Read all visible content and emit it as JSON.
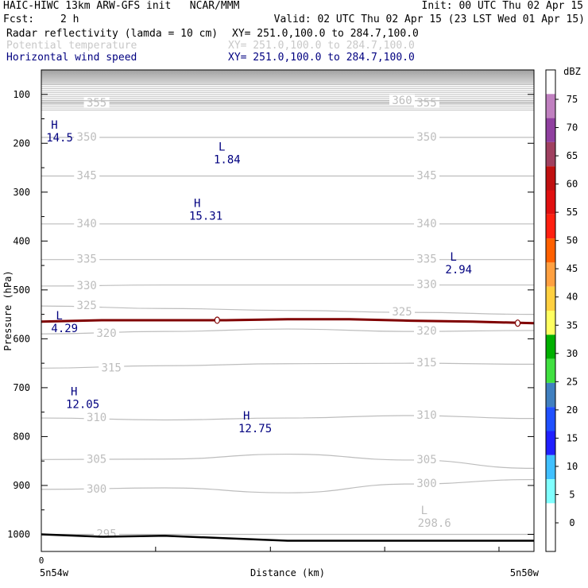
{
  "header": {
    "title_left": "HAIC-HIWC 13km ARW-GFS init   NCAR/MMM",
    "init": "Init: 00 UTC Thu 02 Apr 15",
    "fcst_label": "Fcst:",
    "fcst_value": "2 h",
    "valid": "Valid: 02 UTC Thu 02 Apr 15 (23 LST Wed 01 Apr 15)",
    "fields": [
      {
        "name": "Radar reflectivity (lamda = 10 cm)",
        "xy": "XY= 251.0,100.0 to 284.7,100.0",
        "color": "#000000"
      },
      {
        "name": "Potential temperature",
        "xy": "XY= 251.0,100.0 to 284.7,100.0",
        "color": "#c8c8c8"
      },
      {
        "name": "Horizontal wind speed",
        "xy": "XY= 251.0,100.0 to 284.7,100.0",
        "color": "#000080"
      }
    ]
  },
  "chart_data": {
    "type": "cross-section",
    "ylabel": "Pressure (hPa)",
    "xlabel": "Distance (km)",
    "yticks": [
      100,
      200,
      300,
      400,
      500,
      600,
      700,
      800,
      900,
      1000
    ],
    "ylim": [
      50,
      1035
    ],
    "x_start_label": "0",
    "x_left_label": "5n54w",
    "x_right_label": "5n50w",
    "theta_contours": [
      {
        "value": 295,
        "label": "295",
        "p": [
          1000,
          1000,
          1000,
          1000,
          1000
        ],
        "labels_at": [
          0.1
        ]
      },
      {
        "value": 298.6,
        "label": "298.6",
        "p": [],
        "labels_at": []
      },
      {
        "value": 300,
        "label": "300",
        "p": [
          908,
          905,
          915,
          897,
          888
        ],
        "labels_at": [
          0.08,
          0.75
        ]
      },
      {
        "value": 305,
        "label": "305",
        "p": [
          847,
          846,
          836,
          848,
          865
        ],
        "labels_at": [
          0.08,
          0.75
        ]
      },
      {
        "value": 310,
        "label": "310",
        "p": [
          762,
          766,
          762,
          757,
          763
        ],
        "labels_at": [
          0.08,
          0.75
        ]
      },
      {
        "value": 315,
        "label": "315",
        "p": [
          660,
          655,
          651,
          650,
          652
        ],
        "labels_at": [
          0.11,
          0.75
        ]
      },
      {
        "value": 320,
        "label": "320",
        "p": [
          590,
          585,
          580,
          585,
          583
        ],
        "labels_at": [
          0.1,
          0.75
        ]
      },
      {
        "value": 325,
        "label": "325",
        "p": [
          533,
          538,
          542,
          546,
          550
        ],
        "labels_at": [
          0.06,
          0.7
        ]
      },
      {
        "value": 330,
        "label": "330",
        "p": [
          492,
          490,
          490,
          490,
          490
        ],
        "labels_at": [
          0.06,
          0.75
        ]
      },
      {
        "value": 335,
        "label": "335",
        "p": [
          438,
          438,
          438,
          438,
          438
        ],
        "labels_at": [
          0.06,
          0.75
        ]
      },
      {
        "value": 340,
        "label": "340",
        "p": [
          365,
          365,
          365,
          365,
          365
        ],
        "labels_at": [
          0.06,
          0.75
        ]
      },
      {
        "value": 345,
        "label": "345",
        "p": [
          267,
          267,
          267,
          267,
          267
        ],
        "labels_at": [
          0.06,
          0.75
        ]
      },
      {
        "value": 350,
        "label": "350",
        "p": [
          188,
          188,
          188,
          188,
          188
        ],
        "labels_at": [
          0.06,
          0.75
        ]
      },
      {
        "value": 355,
        "label": "355",
        "p": [
          118,
          118,
          118,
          118,
          118
        ],
        "labels_at": [
          0.08,
          0.75
        ]
      },
      {
        "value": 360,
        "label": "360",
        "p": [
          113,
          113,
          113,
          113,
          113
        ],
        "labels_at": [
          0.7
        ]
      }
    ],
    "wind_extrema": [
      {
        "type": "H",
        "value": "14.5",
        "x_frac": 0.01,
        "p": 180
      },
      {
        "type": "L",
        "value": "1.84",
        "x_frac": 0.35,
        "p": 225
      },
      {
        "type": "H",
        "value": "15.31",
        "x_frac": 0.3,
        "p": 340
      },
      {
        "type": "L",
        "value": "2.94",
        "x_frac": 0.82,
        "p": 450
      },
      {
        "type": "L",
        "value": "4.29",
        "x_frac": 0.02,
        "p": 570
      },
      {
        "type": "H",
        "value": "12.05",
        "x_frac": 0.05,
        "p": 725
      },
      {
        "type": "H",
        "value": "12.75",
        "x_frac": 0.4,
        "p": 775
      }
    ],
    "theta_extrema": [
      {
        "type": "L",
        "value": "298.6",
        "x_frac": 0.78,
        "p": 985
      }
    ],
    "freezing_line_p": [
      565,
      562,
      562,
      562,
      560,
      560,
      563,
      565,
      568
    ],
    "terrain_p": [
      1000,
      1005,
      1003,
      1008,
      1013,
      1013,
      1013,
      1013,
      1013
    ],
    "colorbar": {
      "unit": "dBZ",
      "labels": [
        "75",
        "70",
        "65",
        "60",
        "55",
        "50",
        "45",
        "40",
        "35",
        "30",
        "25",
        "20",
        "15",
        "10",
        "5",
        "0"
      ],
      "colors": [
        "#ffffff",
        "#c080c0",
        "#9040a0",
        "#a04060",
        "#c01010",
        "#e01010",
        "#ff2010",
        "#ff6000",
        "#ffa040",
        "#ffd040",
        "#ffff60",
        "#00b000",
        "#40e040",
        "#4080c0",
        "#2050ff",
        "#2020ff",
        "#40c0ff",
        "#80ffff",
        "#ffffff",
        "#ffffff"
      ]
    }
  }
}
